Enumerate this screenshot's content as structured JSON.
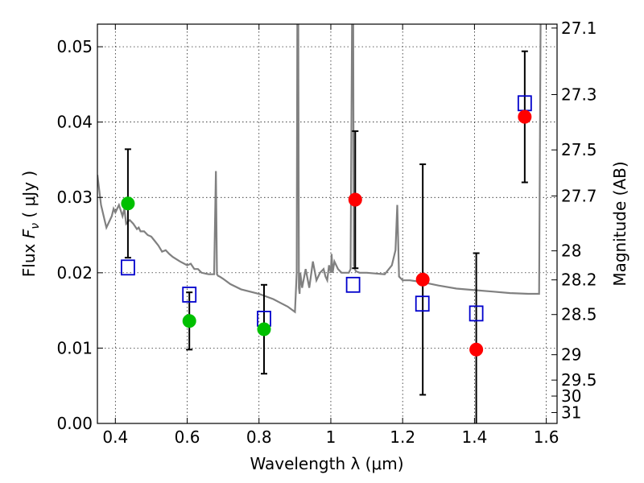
{
  "chart_data": {
    "type": "scatter",
    "xlabel": "Wavelength  λ (μm)",
    "ylabel": "Flux  F_ν  ( μJy )",
    "ylabel_parts": {
      "prefix": "Flux  ",
      "symbol": "F",
      "subscript": "ν",
      "suffix": "  ( μJy )"
    },
    "y2label": "Magnitude (AB)",
    "xlim": [
      0.35,
      1.63
    ],
    "ylim": [
      0.0,
      0.053
    ],
    "grid": true,
    "x_ticks": [
      {
        "value": 0.4,
        "label": "0.4"
      },
      {
        "value": 0.6,
        "label": "0.6"
      },
      {
        "value": 0.8,
        "label": "0.8"
      },
      {
        "value": 1.0,
        "label": "1"
      },
      {
        "value": 1.2,
        "label": "1.2"
      },
      {
        "value": 1.4,
        "label": "1.4"
      },
      {
        "value": 1.6,
        "label": "1.6"
      }
    ],
    "y_ticks": [
      {
        "value": 0.0,
        "label": "0.00"
      },
      {
        "value": 0.01,
        "label": "0.01"
      },
      {
        "value": 0.02,
        "label": "0.02"
      },
      {
        "value": 0.03,
        "label": "0.03"
      },
      {
        "value": 0.04,
        "label": "0.04"
      },
      {
        "value": 0.05,
        "label": "0.05"
      }
    ],
    "y2_ticks": [
      {
        "value": 27.1,
        "label": "27.1"
      },
      {
        "value": 27.3,
        "label": "27.3"
      },
      {
        "value": 27.5,
        "label": "27.5"
      },
      {
        "value": 27.7,
        "label": "27.7"
      },
      {
        "value": 28,
        "label": "28"
      },
      {
        "value": 28.2,
        "label": "28.2"
      },
      {
        "value": 28.5,
        "label": "28.5"
      },
      {
        "value": 29,
        "label": "29"
      },
      {
        "value": 29.5,
        "label": "29.5"
      },
      {
        "value": 30,
        "label": "30"
      },
      {
        "value": 31,
        "label": "31"
      }
    ],
    "series": [
      {
        "name": "model_spectrum",
        "kind": "line",
        "color": "#808080",
        "x": [
          0.35,
          0.36,
          0.37,
          0.375,
          0.38,
          0.39,
          0.395,
          0.4,
          0.41,
          0.42,
          0.425,
          0.43,
          0.44,
          0.45,
          0.46,
          0.465,
          0.47,
          0.48,
          0.49,
          0.5,
          0.51,
          0.52,
          0.53,
          0.54,
          0.55,
          0.56,
          0.58,
          0.6,
          0.61,
          0.62,
          0.63,
          0.64,
          0.66,
          0.675,
          0.68,
          0.683,
          0.686,
          0.69,
          0.7,
          0.72,
          0.75,
          0.8,
          0.84,
          0.86,
          0.88,
          0.9,
          0.905,
          0.907,
          0.909,
          0.911,
          0.913,
          0.915,
          0.92,
          0.93,
          0.94,
          0.95,
          0.96,
          0.97,
          0.98,
          0.985,
          0.99,
          0.995,
          1.0,
          1.002,
          1.005,
          1.01,
          1.02,
          1.03,
          1.04,
          1.05,
          1.055,
          1.06,
          1.062,
          1.064,
          1.067,
          1.07,
          1.08,
          1.1,
          1.15,
          1.17,
          1.18,
          1.185,
          1.19,
          1.2,
          1.22,
          1.25,
          1.3,
          1.35,
          1.4,
          1.45,
          1.5,
          1.55,
          1.57,
          1.58,
          1.585,
          1.59,
          1.6,
          1.63
        ],
        "y": [
          0.033,
          0.029,
          0.027,
          0.026,
          0.0265,
          0.0275,
          0.0285,
          0.028,
          0.029,
          0.0275,
          0.0285,
          0.0265,
          0.027,
          0.0265,
          0.0258,
          0.026,
          0.0255,
          0.0255,
          0.025,
          0.0248,
          0.0242,
          0.0236,
          0.0228,
          0.023,
          0.0225,
          0.0221,
          0.0215,
          0.021,
          0.0212,
          0.0205,
          0.0205,
          0.02,
          0.0198,
          0.0198,
          0.0335,
          0.0198,
          0.0196,
          0.0195,
          0.0192,
          0.0185,
          0.0178,
          0.0172,
          0.0165,
          0.016,
          0.0155,
          0.0148,
          0.02,
          0.06,
          0.06,
          0.018,
          0.0172,
          0.02,
          0.018,
          0.0205,
          0.018,
          0.0215,
          0.019,
          0.02,
          0.0205,
          0.0195,
          0.019,
          0.021,
          0.02,
          0.0225,
          0.02,
          0.0215,
          0.0205,
          0.02,
          0.02,
          0.02,
          0.0205,
          0.06,
          0.06,
          0.021,
          0.0205,
          0.0202,
          0.02,
          0.02,
          0.0198,
          0.021,
          0.023,
          0.029,
          0.0195,
          0.019,
          0.019,
          0.0188,
          0.0183,
          0.0179,
          0.0177,
          0.0175,
          0.0173,
          0.0172,
          0.0172,
          0.0172,
          0.06,
          0.06,
          0.06,
          0.06
        ]
      },
      {
        "name": "model_photometry",
        "kind": "open-square",
        "color": "#0000cc",
        "x": [
          0.435,
          0.606,
          0.814,
          1.062,
          1.255,
          1.405,
          1.54
        ],
        "y": [
          0.0207,
          0.0171,
          0.0139,
          0.0184,
          0.0159,
          0.0146,
          0.0425
        ]
      },
      {
        "name": "optical_detections",
        "kind": "filled-circle",
        "color": "#00c000",
        "x": [
          0.435,
          0.606,
          0.814
        ],
        "y": [
          0.0292,
          0.0136,
          0.0125
        ],
        "yerr": [
          0.0072,
          0.0038,
          0.0059
        ]
      },
      {
        "name": "nir_detections",
        "kind": "filled-circle",
        "color": "#ff0000",
        "x": [
          1.068,
          1.256,
          1.405,
          1.54
        ],
        "y": [
          0.0297,
          0.0191,
          0.0098,
          0.0407
        ],
        "yerr": [
          0.0091,
          0.0153,
          0.0128,
          0.0087
        ]
      }
    ]
  }
}
